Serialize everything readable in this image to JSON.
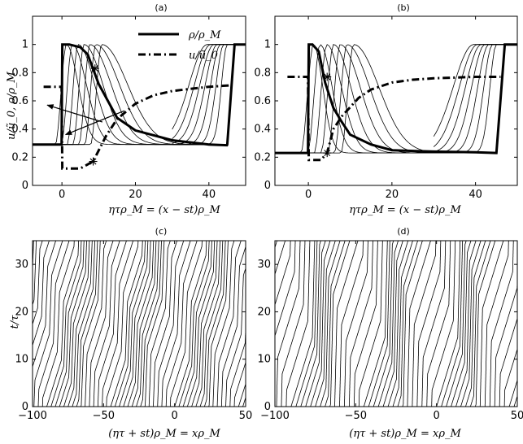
{
  "figure": {
    "panels": [
      {
        "title": "(a)",
        "xlabel": "ητρ_M = (x − st)ρ_M",
        "ylabel": "u/ũ_0, ρ/ρ_M"
      },
      {
        "title": "(b)",
        "xlabel": "ητρ_M = (x − st)ρ_M",
        "ylabel": ""
      },
      {
        "title": "(c)",
        "xlabel": "(ητ + st)ρ_M = xρ_M",
        "ylabel": "t/τ"
      },
      {
        "title": "(d)",
        "xlabel": "(ητ + st)ρ_M = xρ_M",
        "ylabel": ""
      }
    ]
  },
  "chart_data": [
    {
      "panel": "(a)",
      "type": "line",
      "xlim": [
        -8,
        50
      ],
      "ylim": [
        0,
        1.2
      ],
      "xticks": [
        "0",
        "20",
        "40"
      ],
      "yticks": [
        "0",
        "0.2",
        "0.4",
        "0.6",
        "0.8",
        "1"
      ],
      "legend": [
        "ρ/ρ_M",
        "u/ũ_0"
      ],
      "legend_position": "top-right",
      "series": [
        {
          "name": "ρ/ρ_M",
          "style": "thick-solid",
          "x": [
            -8,
            -0.1,
            0.1,
            2,
            5,
            7,
            10,
            15,
            20,
            30,
            40,
            44.9,
            45,
            47,
            50
          ],
          "y": [
            0.29,
            0.29,
            1.0,
            1.0,
            0.98,
            0.93,
            0.72,
            0.48,
            0.39,
            0.32,
            0.29,
            0.285,
            0.29,
            1.0,
            1.0
          ]
        },
        {
          "name": "u/ũ_0",
          "style": "thick-dashdot",
          "x": [
            -5,
            -0.1,
            0.1,
            5,
            8.5,
            12,
            15,
            20,
            25,
            30,
            40,
            46
          ],
          "y": [
            0.7,
            0.7,
            0.12,
            0.12,
            0.17,
            0.35,
            0.47,
            0.58,
            0.64,
            0.67,
            0.7,
            0.71
          ]
        }
      ],
      "markers": [
        {
          "x": 8.5,
          "y": 0.17,
          "symbol": "*"
        },
        {
          "x": 9,
          "y": 0.83,
          "symbol": "*"
        }
      ],
      "arrows": [
        {
          "from": [
            11,
            0.45
          ],
          "to": [
            -4,
            0.57
          ]
        },
        {
          "from": [
            17,
            0.53
          ],
          "to": [
            1,
            0.36
          ]
        }
      ],
      "thin_profiles": 7
    },
    {
      "panel": "(b)",
      "type": "line",
      "xlim": [
        -8,
        50
      ],
      "ylim": [
        0,
        1.2
      ],
      "xticks": [
        "0",
        "20",
        "40"
      ],
      "yticks": [
        "0",
        "0.2",
        "0.4",
        "0.6",
        "0.8",
        "1"
      ],
      "series": [
        {
          "name": "",
          "style": "thick-solid",
          "x": [
            -8,
            -0.1,
            0.1,
            1,
            2.5,
            4,
            6,
            8,
            10,
            15,
            20,
            30,
            40,
            44.9,
            45,
            47,
            50
          ],
          "y": [
            0.23,
            0.23,
            1.0,
            1.0,
            0.95,
            0.73,
            0.55,
            0.45,
            0.36,
            0.29,
            0.25,
            0.24,
            0.235,
            0.23,
            0.23,
            1.0,
            1.0
          ]
        },
        {
          "name": "",
          "style": "thick-dashdot",
          "x": [
            -5,
            -0.1,
            0.1,
            3,
            4.5,
            6,
            8,
            12,
            15,
            20,
            25,
            30,
            40,
            46
          ],
          "y": [
            0.77,
            0.77,
            0.18,
            0.18,
            0.23,
            0.4,
            0.49,
            0.62,
            0.68,
            0.73,
            0.75,
            0.76,
            0.77,
            0.77
          ]
        }
      ],
      "markers": [
        {
          "x": 4.5,
          "y": 0.23,
          "symbol": "*"
        },
        {
          "x": 4.5,
          "y": 0.77,
          "symbol": "*"
        }
      ],
      "thin_profiles": 7
    },
    {
      "panel": "(c)",
      "type": "line",
      "xlim": [
        -100,
        50
      ],
      "ylim": [
        0,
        35
      ],
      "xticks": [
        "−100",
        "−50",
        "0",
        "50"
      ],
      "yticks": [
        "0",
        "10",
        "20",
        "30"
      ],
      "trajectory_count": 75,
      "wave_period_x": 45,
      "wave_speed_per_tau": -1.5,
      "line_speed_per_tau": 3.5
    },
    {
      "panel": "(d)",
      "type": "line",
      "xlim": [
        -100,
        50
      ],
      "ylim": [
        0,
        35
      ],
      "xticks": [
        "−100",
        "−50",
        "0",
        "50"
      ],
      "yticks": [
        "0",
        "10",
        "20",
        "30"
      ],
      "trajectory_count": 75,
      "wave_period_x": 45,
      "wave_speed_per_tau": -0.8,
      "line_speed_per_tau": 3.0
    }
  ]
}
